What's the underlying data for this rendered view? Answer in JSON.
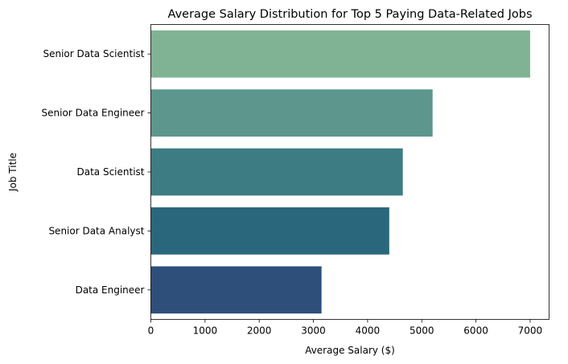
{
  "chart_data": {
    "type": "bar",
    "orientation": "horizontal",
    "title": "Average Salary Distribution for Top 5 Paying Data-Related Jobs",
    "xlabel": "Average Salary ($)",
    "ylabel": "Job Title",
    "categories": [
      "Senior Data Scientist",
      "Senior Data Engineer",
      "Data Scientist",
      "Senior Data Analyst",
      "Data Engineer"
    ],
    "values": [
      7000,
      5200,
      4650,
      4400,
      3150
    ],
    "colors": [
      "#7fb394",
      "#5c968d",
      "#3d7c82",
      "#2a677c",
      "#2d4f7a"
    ],
    "xlim": [
      0,
      7350
    ],
    "xticks": [
      0,
      1000,
      2000,
      3000,
      4000,
      5000,
      6000,
      7000
    ],
    "grid": false
  }
}
